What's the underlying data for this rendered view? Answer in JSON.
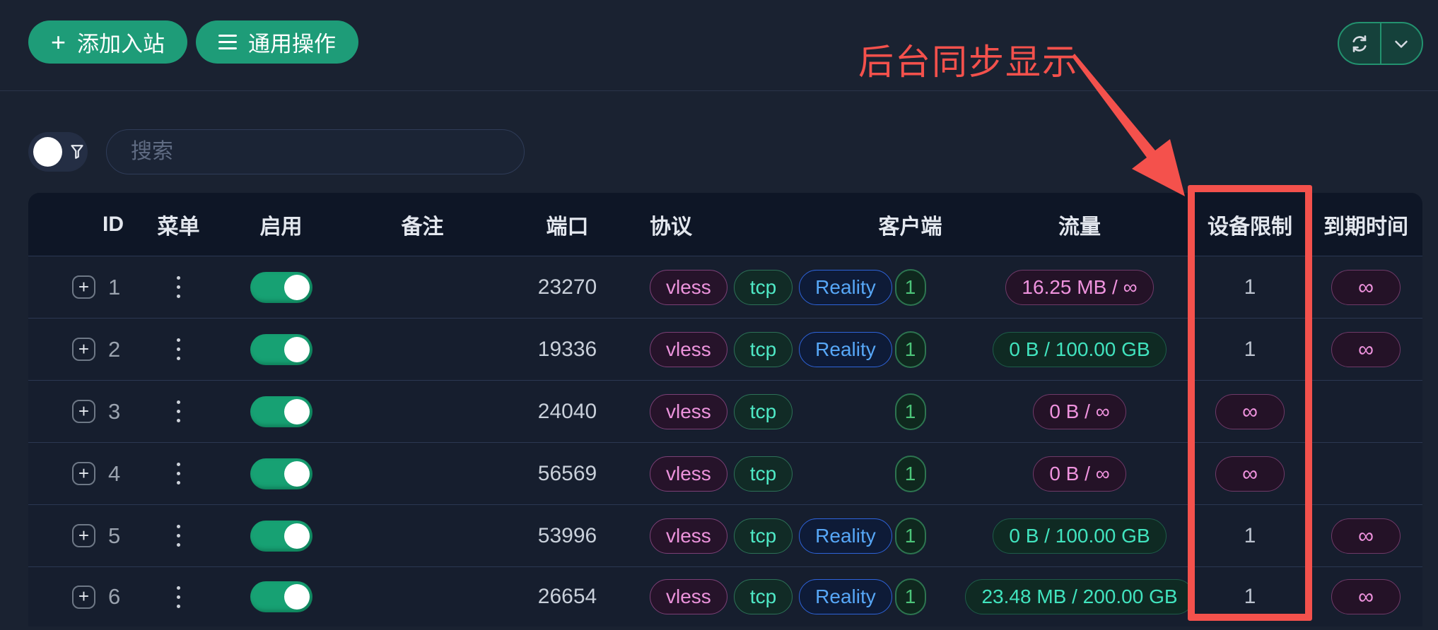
{
  "toolbar": {
    "add_inbound_label": "添加入站",
    "general_actions_label": "通用操作"
  },
  "annotation": {
    "text": "后台同步显示"
  },
  "filters": {
    "search_placeholder": "搜索"
  },
  "icons": [
    "plus-icon",
    "menu-bars-icon",
    "refresh-icon",
    "chevron-down-icon",
    "filter-funnel-icon",
    "expand-plus-icon",
    "vertical-dots-icon"
  ],
  "colors": {
    "page_bg": "#1a2231",
    "accent_green": "#1e9c78",
    "toggle_green": "#17a173",
    "annotation_red": "#f4514c",
    "badge_vless": "#ec93dc",
    "badge_tcp": "#4fe9c6",
    "badge_reality": "#57a7f7",
    "traffic_green": "#41e3be",
    "traffic_purple": "#ef93de"
  },
  "table": {
    "headers": [
      "ID",
      "菜单",
      "启用",
      "备注",
      "端口",
      "协议",
      "客户端",
      "流量",
      "设备限制",
      "到期时间"
    ],
    "infinity": "∞",
    "rows": [
      {
        "id": "1",
        "enabled": true,
        "remark": "",
        "port": "23270",
        "protocols": [
          "vless",
          "tcp",
          "Reality"
        ],
        "clients": "1",
        "traffic": "16.25 MB / ∞",
        "traffic_style": "purple",
        "device_limit": "1",
        "device_limit_style": "text",
        "expiry": "∞",
        "expiry_style": "badge"
      },
      {
        "id": "2",
        "enabled": true,
        "remark": "",
        "port": "19336",
        "protocols": [
          "vless",
          "tcp",
          "Reality"
        ],
        "clients": "1",
        "traffic": "0 B / 100.00 GB",
        "traffic_style": "green",
        "device_limit": "1",
        "device_limit_style": "text",
        "expiry": "∞",
        "expiry_style": "badge"
      },
      {
        "id": "3",
        "enabled": true,
        "remark": "",
        "port": "24040",
        "protocols": [
          "vless",
          "tcp"
        ],
        "clients": "1",
        "traffic": "0 B / ∞",
        "traffic_style": "purple",
        "device_limit": "∞",
        "device_limit_style": "badge",
        "expiry": "",
        "expiry_style": "empty"
      },
      {
        "id": "4",
        "enabled": true,
        "remark": "",
        "port": "56569",
        "protocols": [
          "vless",
          "tcp"
        ],
        "clients": "1",
        "traffic": "0 B / ∞",
        "traffic_style": "purple",
        "device_limit": "∞",
        "device_limit_style": "badge",
        "expiry": "",
        "expiry_style": "empty"
      },
      {
        "id": "5",
        "enabled": true,
        "remark": "",
        "port": "53996",
        "protocols": [
          "vless",
          "tcp",
          "Reality"
        ],
        "clients": "1",
        "traffic": "0 B / 100.00 GB",
        "traffic_style": "green",
        "device_limit": "1",
        "device_limit_style": "text",
        "expiry": "∞",
        "expiry_style": "badge"
      },
      {
        "id": "6",
        "enabled": true,
        "remark": "",
        "port": "26654",
        "protocols": [
          "vless",
          "tcp",
          "Reality"
        ],
        "clients": "1",
        "traffic": "23.48 MB / 200.00 GB",
        "traffic_style": "green",
        "device_limit": "1",
        "device_limit_style": "text",
        "expiry": "∞",
        "expiry_style": "badge"
      }
    ]
  }
}
